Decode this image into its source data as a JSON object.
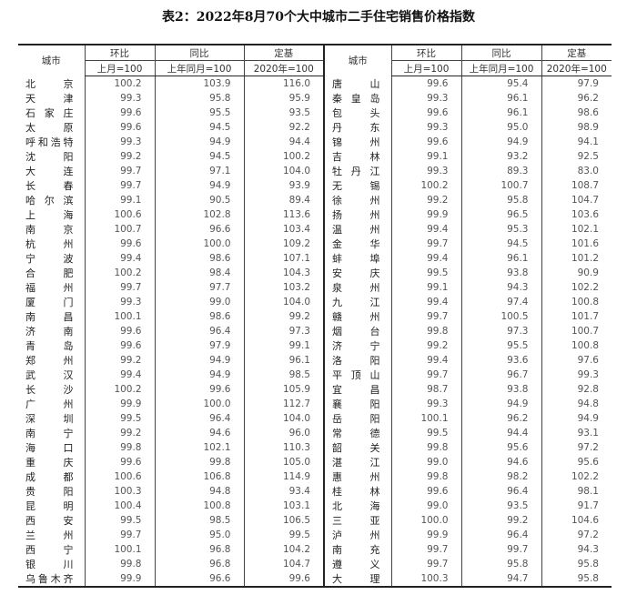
{
  "title": "表2：2022年8月70个大中城市二手住宅销售价格指数",
  "headers": {
    "city": "城市",
    "mom": "环比",
    "yoy": "同比",
    "base": "定基",
    "mom_sub": "上月=100",
    "yoy_sub": "上年同月=100",
    "base_sub": "2020年=100"
  },
  "left": [
    [
      "北京",
      "100.2",
      "103.9",
      "116.0"
    ],
    [
      "天津",
      "99.3",
      "95.8",
      "95.9"
    ],
    [
      "石家庄",
      "99.6",
      "95.5",
      "93.5"
    ],
    [
      "太原",
      "99.6",
      "94.5",
      "92.2"
    ],
    [
      "呼和浩特",
      "99.3",
      "94.9",
      "94.4"
    ],
    [
      "沈阳",
      "99.2",
      "94.5",
      "100.2"
    ],
    [
      "大连",
      "99.7",
      "97.1",
      "104.0"
    ],
    [
      "长春",
      "99.7",
      "94.9",
      "93.9"
    ],
    [
      "哈尔滨",
      "99.1",
      "90.5",
      "89.4"
    ],
    [
      "上海",
      "100.6",
      "102.8",
      "113.6"
    ],
    [
      "南京",
      "100.7",
      "96.6",
      "103.4"
    ],
    [
      "杭州",
      "99.6",
      "100.0",
      "109.2"
    ],
    [
      "宁波",
      "99.4",
      "98.6",
      "107.1"
    ],
    [
      "合肥",
      "100.2",
      "98.4",
      "104.3"
    ],
    [
      "福州",
      "99.7",
      "97.7",
      "103.2"
    ],
    [
      "厦门",
      "99.3",
      "99.0",
      "104.0"
    ],
    [
      "南昌",
      "100.1",
      "98.6",
      "99.2"
    ],
    [
      "济南",
      "99.6",
      "96.4",
      "97.3"
    ],
    [
      "青岛",
      "99.6",
      "97.9",
      "99.1"
    ],
    [
      "郑州",
      "99.2",
      "94.9",
      "96.1"
    ],
    [
      "武汉",
      "99.4",
      "94.9",
      "98.5"
    ],
    [
      "长沙",
      "100.2",
      "99.6",
      "105.9"
    ],
    [
      "广州",
      "99.9",
      "100.0",
      "112.7"
    ],
    [
      "深圳",
      "99.5",
      "96.4",
      "104.0"
    ],
    [
      "南宁",
      "99.2",
      "94.6",
      "96.0"
    ],
    [
      "海口",
      "99.8",
      "102.1",
      "110.3"
    ],
    [
      "重庆",
      "99.6",
      "99.8",
      "105.0"
    ],
    [
      "成都",
      "100.6",
      "106.8",
      "114.9"
    ],
    [
      "贵阳",
      "100.3",
      "94.8",
      "93.4"
    ],
    [
      "昆明",
      "100.4",
      "100.8",
      "103.1"
    ],
    [
      "西安",
      "99.5",
      "98.5",
      "106.5"
    ],
    [
      "兰州",
      "99.7",
      "95.0",
      "99.5"
    ],
    [
      "西宁",
      "100.1",
      "96.8",
      "104.2"
    ],
    [
      "银川",
      "99.8",
      "96.8",
      "104.7"
    ],
    [
      "乌鲁木齐",
      "99.9",
      "96.6",
      "99.6"
    ]
  ],
  "right": [
    [
      "唐山",
      "99.6",
      "95.4",
      "97.9"
    ],
    [
      "秦皇岛",
      "99.3",
      "96.1",
      "96.2"
    ],
    [
      "包头",
      "99.6",
      "96.1",
      "98.6"
    ],
    [
      "丹东",
      "99.3",
      "95.0",
      "98.9"
    ],
    [
      "锦州",
      "99.6",
      "94.9",
      "94.1"
    ],
    [
      "吉林",
      "99.1",
      "93.2",
      "92.5"
    ],
    [
      "牡丹江",
      "99.3",
      "89.3",
      "83.0"
    ],
    [
      "无锡",
      "100.2",
      "100.7",
      "108.7"
    ],
    [
      "徐州",
      "99.2",
      "95.8",
      "104.7"
    ],
    [
      "扬州",
      "99.9",
      "96.5",
      "103.6"
    ],
    [
      "温州",
      "99.4",
      "95.3",
      "102.1"
    ],
    [
      "金华",
      "99.7",
      "94.5",
      "101.6"
    ],
    [
      "蚌埠",
      "99.4",
      "96.1",
      "101.2"
    ],
    [
      "安庆",
      "99.5",
      "93.8",
      "90.9"
    ],
    [
      "泉州",
      "99.1",
      "94.3",
      "102.2"
    ],
    [
      "九江",
      "99.4",
      "97.4",
      "100.8"
    ],
    [
      "赣州",
      "99.7",
      "100.5",
      "101.7"
    ],
    [
      "烟台",
      "99.8",
      "97.3",
      "100.7"
    ],
    [
      "济宁",
      "99.2",
      "95.5",
      "100.8"
    ],
    [
      "洛阳",
      "99.4",
      "93.6",
      "97.6"
    ],
    [
      "平顶山",
      "99.7",
      "96.7",
      "99.3"
    ],
    [
      "宜昌",
      "98.7",
      "93.8",
      "92.8"
    ],
    [
      "襄阳",
      "99.3",
      "94.9",
      "94.8"
    ],
    [
      "岳阳",
      "100.1",
      "96.2",
      "94.9"
    ],
    [
      "常德",
      "99.5",
      "94.4",
      "93.1"
    ],
    [
      "韶关",
      "99.8",
      "95.6",
      "97.2"
    ],
    [
      "湛江",
      "99.0",
      "94.6",
      "95.6"
    ],
    [
      "惠州",
      "99.8",
      "98.2",
      "102.2"
    ],
    [
      "桂林",
      "99.6",
      "96.4",
      "98.1"
    ],
    [
      "北海",
      "99.0",
      "93.5",
      "91.7"
    ],
    [
      "三亚",
      "100.0",
      "99.2",
      "104.6"
    ],
    [
      "泸州",
      "99.9",
      "96.4",
      "97.2"
    ],
    [
      "南充",
      "99.7",
      "99.7",
      "94.3"
    ],
    [
      "遵义",
      "99.7",
      "95.8",
      "95.8"
    ],
    [
      "大理",
      "100.3",
      "94.7",
      "95.8"
    ]
  ]
}
